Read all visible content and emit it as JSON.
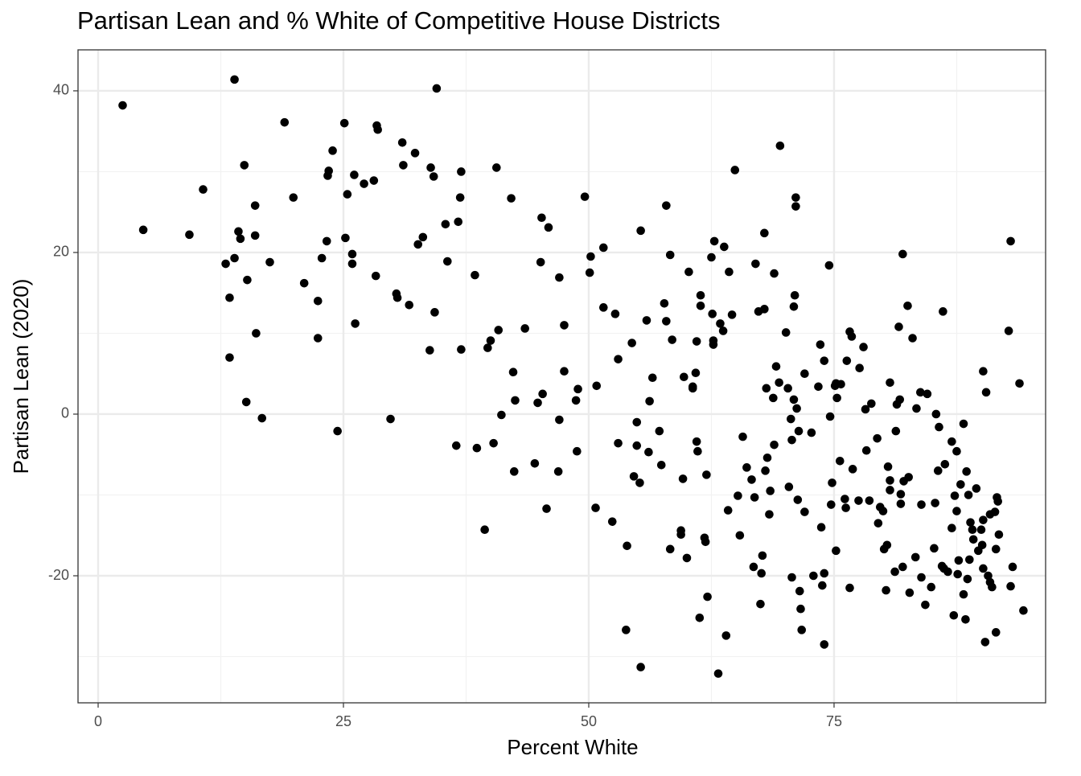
{
  "chart_data": {
    "type": "scatter",
    "title": "Partisan Lean and % White of Competitive House Districts",
    "x_label": "Percent White",
    "y_label": "Partisan Lean (2020)",
    "color": "#000000",
    "grid": true,
    "xlim": [
      -2.05,
      96.56
    ],
    "ylim": [
      -35.72,
      45.07
    ],
    "xticks": [
      0,
      25,
      50,
      75
    ],
    "yticks": [
      -20,
      0,
      20,
      40
    ],
    "x_minor_grid": [
      12.5,
      37.5,
      62.5,
      87.5
    ],
    "y_minor_grid": [
      -30,
      -10,
      10,
      30
    ],
    "x": [
      2.5,
      4.6,
      9.3,
      10.7,
      13.0,
      13.4,
      13.4,
      13.9,
      13.9,
      14.3,
      14.5,
      14.9,
      15.1,
      15.2,
      16.0,
      16.0,
      16.1,
      16.7,
      17.5,
      19.0,
      19.9,
      21.0,
      22.4,
      22.4,
      22.8,
      23.3,
      23.4,
      23.5,
      23.9,
      24.4,
      25.1,
      25.2,
      25.4,
      25.9,
      25.9,
      26.1,
      26.2,
      27.1,
      28.1,
      28.3,
      28.4,
      28.5,
      29.8,
      30.4,
      30.5,
      31.0,
      31.1,
      31.7,
      32.3,
      32.6,
      33.1,
      33.8,
      33.9,
      34.2,
      34.3,
      34.5,
      35.4,
      35.6,
      36.5,
      36.7,
      36.9,
      37.0,
      37.0,
      38.4,
      38.6,
      39.4,
      39.7,
      40.0,
      40.3,
      40.6,
      40.8,
      41.1,
      42.1,
      42.3,
      42.4,
      42.5,
      43.5,
      44.5,
      44.8,
      45.1,
      45.2,
      45.3,
      45.7,
      45.9,
      46.9,
      47.0,
      47.0,
      47.5,
      47.5,
      48.7,
      48.8,
      48.9,
      49.6,
      50.1,
      50.2,
      50.7,
      50.8,
      51.5,
      51.5,
      52.4,
      52.7,
      53.0,
      53.0,
      53.8,
      53.9,
      54.4,
      54.6,
      54.9,
      54.9,
      55.2,
      55.3,
      55.3,
      55.9,
      56.1,
      56.2,
      56.5,
      57.2,
      57.4,
      57.7,
      57.9,
      57.9,
      58.3,
      58.3,
      58.5,
      59.4,
      59.4,
      59.6,
      59.7,
      60.0,
      60.2,
      60.6,
      60.6,
      60.9,
      61.0,
      61.0,
      61.1,
      61.3,
      61.4,
      61.4,
      61.8,
      61.9,
      62.0,
      62.1,
      62.5,
      62.6,
      62.7,
      62.7,
      62.8,
      63.2,
      63.4,
      63.7,
      63.8,
      64.0,
      64.2,
      64.3,
      64.6,
      64.9,
      65.2,
      65.4,
      65.7,
      66.1,
      66.6,
      66.8,
      66.9,
      67.0,
      67.3,
      67.5,
      67.6,
      67.7,
      67.9,
      67.9,
      68.0,
      68.1,
      68.2,
      68.4,
      68.5,
      68.8,
      68.9,
      68.9,
      69.1,
      69.4,
      69.5,
      70.1,
      70.3,
      70.4,
      70.6,
      70.7,
      70.7,
      70.9,
      70.9,
      71.0,
      71.1,
      71.1,
      71.2,
      71.3,
      71.4,
      71.5,
      71.6,
      71.7,
      72.0,
      72.0,
      72.7,
      72.9,
      73.4,
      73.6,
      73.7,
      73.8,
      74.0,
      74.0,
      74.0,
      74.5,
      74.6,
      74.7,
      74.8,
      75.1,
      75.2,
      75.2,
      75.3,
      75.6,
      75.7,
      76.1,
      76.2,
      76.3,
      76.6,
      76.6,
      76.8,
      76.9,
      77.5,
      77.6,
      78.0,
      78.2,
      78.3,
      78.6,
      78.8,
      79.4,
      79.5,
      79.7,
      80.0,
      80.1,
      80.3,
      80.4,
      80.5,
      80.7,
      80.7,
      80.7,
      81.2,
      81.3,
      81.4,
      81.6,
      81.7,
      81.8,
      81.8,
      82.0,
      82.0,
      82.1,
      82.5,
      82.6,
      82.7,
      83.0,
      83.3,
      83.4,
      83.8,
      83.9,
      83.9,
      84.3,
      84.5,
      84.9,
      85.2,
      85.3,
      85.4,
      85.6,
      85.7,
      86.0,
      86.1,
      86.2,
      86.3,
      86.6,
      87.0,
      87.0,
      87.2,
      87.3,
      87.5,
      87.5,
      87.6,
      87.7,
      87.9,
      88.2,
      88.2,
      88.4,
      88.5,
      88.6,
      88.7,
      88.8,
      88.9,
      89.1,
      89.2,
      89.5,
      89.7,
      90.0,
      90.1,
      90.2,
      90.2,
      90.2,
      90.4,
      90.5,
      90.7,
      90.9,
      90.9,
      91.1,
      91.4,
      91.5,
      91.5,
      91.6,
      91.7,
      91.8,
      92.8,
      93.0,
      93.0,
      93.2,
      93.9,
      94.3
    ],
    "values": [
      38.2,
      22.8,
      22.2,
      27.8,
      18.6,
      14.4,
      7.0,
      41.4,
      19.3,
      22.6,
      21.7,
      30.8,
      1.5,
      16.6,
      25.8,
      22.1,
      10.0,
      -0.5,
      18.8,
      36.1,
      26.8,
      16.2,
      14.0,
      9.4,
      19.3,
      21.4,
      29.5,
      30.1,
      32.6,
      -2.1,
      36.0,
      21.8,
      27.2,
      19.8,
      18.6,
      29.6,
      11.2,
      28.5,
      28.9,
      17.1,
      35.7,
      35.2,
      -0.6,
      14.9,
      14.4,
      33.6,
      30.8,
      13.5,
      32.3,
      21.0,
      21.9,
      7.9,
      30.5,
      29.4,
      12.6,
      40.3,
      23.5,
      18.9,
      -3.9,
      23.8,
      26.8,
      8.0,
      30.0,
      17.2,
      -4.2,
      -14.3,
      8.2,
      9.1,
      -3.6,
      30.5,
      10.4,
      -0.1,
      26.7,
      5.2,
      -7.1,
      1.7,
      10.6,
      -6.1,
      1.4,
      18.8,
      24.3,
      2.5,
      -11.7,
      23.1,
      -7.1,
      -0.7,
      16.9,
      11.0,
      5.3,
      1.7,
      -4.6,
      3.1,
      26.9,
      17.5,
      19.5,
      -11.6,
      3.5,
      20.6,
      13.2,
      -13.3,
      12.4,
      6.8,
      -3.6,
      -26.7,
      -16.3,
      8.8,
      -7.7,
      -1.0,
      -3.9,
      -8.5,
      22.7,
      -31.3,
      11.6,
      -4.7,
      1.6,
      4.5,
      -2.1,
      -6.3,
      13.7,
      11.5,
      25.8,
      -16.7,
      19.7,
      9.2,
      -14.9,
      -14.4,
      -8.0,
      4.6,
      -17.8,
      17.6,
      3.2,
      3.4,
      5.1,
      -3.4,
      9.0,
      -4.6,
      -25.2,
      14.7,
      13.4,
      -15.3,
      -15.8,
      -7.5,
      -22.6,
      19.4,
      12.4,
      8.6,
      9.1,
      21.4,
      -32.1,
      11.2,
      10.3,
      20.7,
      -27.4,
      -11.9,
      17.6,
      12.3,
      30.2,
      -10.1,
      -15.0,
      -2.8,
      -6.6,
      -8.1,
      -18.9,
      -10.3,
      18.6,
      12.7,
      -23.5,
      -19.7,
      -17.5,
      13.0,
      22.4,
      -7.0,
      3.2,
      -5.4,
      -12.4,
      -9.5,
      2.0,
      17.4,
      -3.8,
      5.9,
      3.9,
      33.2,
      10.1,
      3.2,
      -9.0,
      -0.6,
      -20.2,
      -3.2,
      1.8,
      13.3,
      14.7,
      25.7,
      26.8,
      0.7,
      -10.6,
      -2.1,
      -21.9,
      -24.1,
      -26.7,
      5.0,
      -12.1,
      -2.3,
      -20.0,
      3.4,
      8.6,
      -14.0,
      -21.2,
      -28.5,
      -19.7,
      6.6,
      18.4,
      -0.3,
      -11.2,
      -8.5,
      3.5,
      3.8,
      -16.9,
      2.0,
      -5.8,
      3.7,
      -10.5,
      -11.6,
      6.6,
      -21.5,
      10.2,
      9.6,
      -6.8,
      -10.7,
      5.7,
      8.3,
      0.6,
      -4.5,
      -10.7,
      1.3,
      -3.0,
      -13.5,
      -11.5,
      -12.0,
      -16.7,
      -21.8,
      -16.2,
      -6.5,
      3.9,
      -8.2,
      -9.4,
      -19.5,
      -2.1,
      1.2,
      10.8,
      1.8,
      -9.9,
      -11.1,
      -18.9,
      19.8,
      -8.3,
      13.4,
      -7.8,
      -22.1,
      9.4,
      -17.7,
      0.7,
      2.7,
      -11.2,
      -20.2,
      -23.6,
      2.5,
      -21.4,
      -16.6,
      -11.0,
      0.0,
      -7.0,
      -1.6,
      -18.8,
      12.7,
      -19.1,
      -6.2,
      -19.5,
      -3.4,
      -14.1,
      -24.9,
      -10.1,
      -4.6,
      -12.0,
      -19.8,
      -18.1,
      -8.7,
      -1.2,
      -22.3,
      -25.4,
      -7.1,
      -20.4,
      -10.0,
      -18.0,
      -13.4,
      -14.3,
      -15.5,
      -9.2,
      -16.9,
      -14.3,
      -16.2,
      -13.1,
      5.3,
      -19.1,
      -28.2,
      2.7,
      -20.0,
      -20.8,
      -12.4,
      -21.4,
      -12.1,
      -27.0,
      -16.7,
      -10.3,
      -10.8,
      -14.9,
      10.3,
      -21.3,
      21.4,
      -18.9,
      3.8,
      -24.3
    ]
  }
}
